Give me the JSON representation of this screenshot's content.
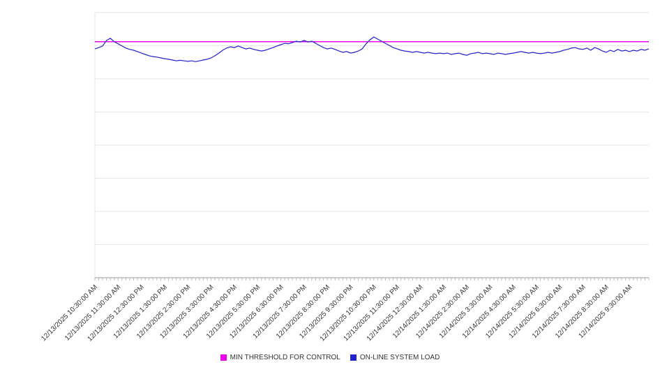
{
  "chart_data": {
    "type": "line",
    "grid": "horizontal",
    "grid_intervals": 8,
    "ylim": [
      0,
      100
    ],
    "points_per_tick": 6,
    "legend_position": "bottom",
    "x_tick_labels": [
      "12/13/2025 10:30:00 AM",
      "12/13/2025 11:30:00 AM",
      "12/13/2025 12:30:00 PM",
      "12/13/2025 1:30:00 PM",
      "12/13/2025 2:30:00 PM",
      "12/13/2025 3:30:00 PM",
      "12/13/2025 4:30:00 PM",
      "12/13/2025 5:30:00 PM",
      "12/13/2025 6:30:00 PM",
      "12/13/2025 7:30:00 PM",
      "12/13/2025 8:30:00 PM",
      "12/13/2025 9:30:00 PM",
      "12/13/2025 10:30:00 PM",
      "12/13/2025 11:30:00 PM",
      "12/14/2025 12:30:00 AM",
      "12/14/2025 1:30:00 AM",
      "12/14/2025 2:30:00 AM",
      "12/14/2025 3:30:00 AM",
      "12/14/2025 4:30:00 AM",
      "12/14/2025 5:30:00 AM",
      "12/14/2025 6:30:00 AM",
      "12/14/2025 7:30:00 AM",
      "12/14/2025 8:30:00 AM",
      "12/14/2025 9:30:00 AM"
    ],
    "series": [
      {
        "name": "MIN THRESHOLD FOR CONTROL",
        "color": "#ee00ee",
        "style": "constant",
        "value": 89
      },
      {
        "name": "ON-LINE SYSTEM LOAD",
        "color": "#2222cc",
        "style": "line",
        "values": [
          86.3,
          86.8,
          87.4,
          89.5,
          90.3,
          89.0,
          88.2,
          87.4,
          86.6,
          86.1,
          85.8,
          85.3,
          84.7,
          84.2,
          83.7,
          83.4,
          83.2,
          82.9,
          82.6,
          82.4,
          82.1,
          81.8,
          82.0,
          81.8,
          81.6,
          81.8,
          81.5,
          81.8,
          82.1,
          82.4,
          82.9,
          83.7,
          84.7,
          85.8,
          86.6,
          87.1,
          86.8,
          87.4,
          86.8,
          86.3,
          86.6,
          86.1,
          85.8,
          85.5,
          85.8,
          86.3,
          86.8,
          87.4,
          87.9,
          88.4,
          88.2,
          88.7,
          89.2,
          88.9,
          89.5,
          88.9,
          89.2,
          88.4,
          87.6,
          86.8,
          86.3,
          86.6,
          86.1,
          85.5,
          85.0,
          85.3,
          84.7,
          85.0,
          85.5,
          86.3,
          88.2,
          89.7,
          90.8,
          90.0,
          89.2,
          88.4,
          87.6,
          86.8,
          86.3,
          85.8,
          85.5,
          85.3,
          85.0,
          85.3,
          85.0,
          84.7,
          85.0,
          84.7,
          84.5,
          84.7,
          84.5,
          84.7,
          84.2,
          84.5,
          84.7,
          84.2,
          83.9,
          84.5,
          84.7,
          85.0,
          84.5,
          84.7,
          84.5,
          84.2,
          84.7,
          84.5,
          84.2,
          84.5,
          84.7,
          85.0,
          85.3,
          85.0,
          84.7,
          85.0,
          84.7,
          84.5,
          84.7,
          85.0,
          84.7,
          85.0,
          85.3,
          85.8,
          86.1,
          86.6,
          86.8,
          86.3,
          86.1,
          86.6,
          85.8,
          86.8,
          86.3,
          85.5,
          85.0,
          85.8,
          85.3,
          86.1,
          85.5,
          85.8,
          85.3,
          85.8,
          85.5,
          86.1,
          85.8,
          86.3
        ]
      }
    ],
    "colors": {
      "gridline": "#e6e6e6",
      "axis": "#999999",
      "tick": "#bbbbbb",
      "tick_label_text": "#333333"
    }
  }
}
